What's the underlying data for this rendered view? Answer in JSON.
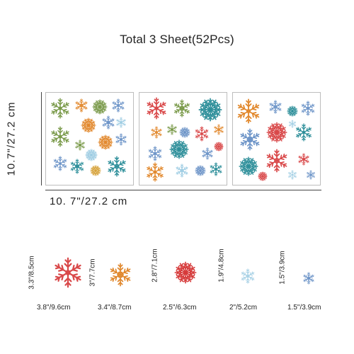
{
  "title": "Total 3 Sheet(52Pcs)",
  "sheet_height_label": "10.7\"/27.2 cm",
  "sheet_width_label": "10. 7\"/27.2 cm",
  "sizes": [
    {
      "height": "3.3\"/8.5cm",
      "width": "3.8\"/9.6cm",
      "color": "#d9494a"
    },
    {
      "height": "3\"/7.7cm",
      "width": "3.4\"/8.7cm",
      "color": "#e0882e"
    },
    {
      "height": "2.8\"/7.1cm",
      "width": "2.5\"/6.3cm",
      "color": "#d63a3a"
    },
    {
      "height": "1.9\"/4.8cm",
      "width": "2\"/5.2cm",
      "color": "#a9d2e6"
    },
    {
      "height": "1.5\"/3.9cm",
      "width": "1.5\"/3.9cm",
      "color": "#6e95c8"
    }
  ],
  "palette": {
    "green": "#7a9a4a",
    "orange": "#e2892e",
    "red": "#d9494a",
    "teal": "#2e8f9a",
    "blue": "#6e95c8",
    "lightblue": "#9fcde3",
    "gold": "#d6a23a"
  }
}
